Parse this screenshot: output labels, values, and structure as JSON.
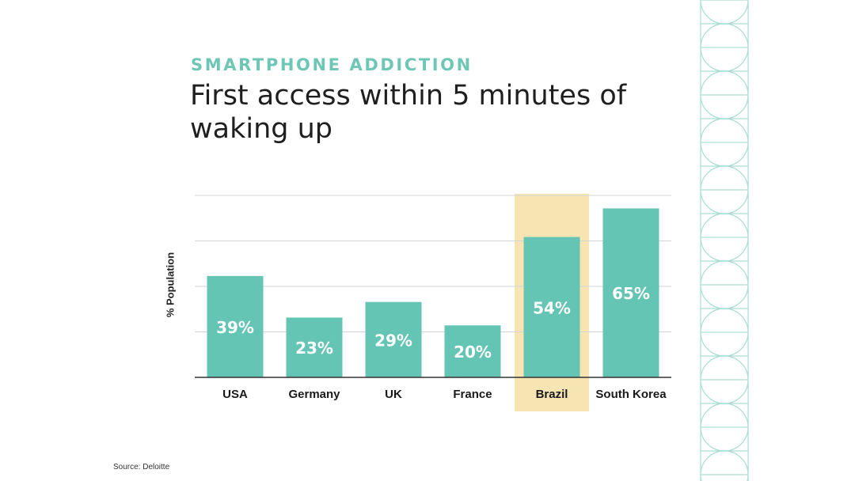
{
  "header": {
    "kicker": "SMARTPHONE ADDICTION",
    "title": "First access within 5 minutes of waking up"
  },
  "source": "Source: Deloitte",
  "colors": {
    "bar": "#65c5b4",
    "highlight": "#f6e4b3",
    "kicker": "#6ec7b5",
    "pattern": "#a9ddd3"
  },
  "chart_data": {
    "type": "bar",
    "title": "First access within 5 minutes of waking up",
    "xlabel": "",
    "ylabel": "% Population",
    "categories": [
      "USA",
      "Germany",
      "UK",
      "France",
      "Brazil",
      "South Korea"
    ],
    "values": [
      39,
      23,
      29,
      20,
      54,
      65
    ],
    "value_labels": [
      "39%",
      "23%",
      "29%",
      "20%",
      "54%",
      "65%"
    ],
    "highlight_category": "Brazil",
    "ylim": [
      0,
      70
    ],
    "grid": true,
    "gridlines": [
      0,
      17.5,
      35,
      52.5,
      70
    ]
  }
}
